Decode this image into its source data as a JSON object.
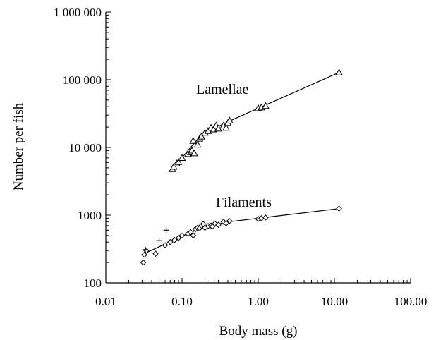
{
  "chart_data": {
    "type": "scatter",
    "xlabel": "Body mass (g)",
    "ylabel": "Number per fish",
    "xscale": "log",
    "yscale": "log",
    "xlim": [
      0.01,
      100
    ],
    "ylim": [
      100,
      1000000
    ],
    "x_ticks": [
      "0.01",
      "0.10",
      "1.00",
      "10.00",
      "100.00"
    ],
    "y_ticks": [
      "100",
      "1000",
      "10 000",
      "100 000",
      "1 000 000"
    ],
    "grid": false,
    "legend": "none",
    "annotations": [
      "Lamellae",
      "Filaments"
    ],
    "series": [
      {
        "marker": "triangle",
        "points": [
          [
            0.075,
            4800
          ],
          [
            0.078,
            5200
          ],
          [
            0.085,
            5800
          ],
          [
            0.09,
            6100
          ],
          [
            0.1,
            7000
          ],
          [
            0.12,
            8000
          ],
          [
            0.13,
            8500
          ],
          [
            0.135,
            9000
          ],
          [
            0.14,
            12500
          ],
          [
            0.145,
            8200
          ],
          [
            0.16,
            11000
          ],
          [
            0.17,
            13500
          ],
          [
            0.18,
            14500
          ],
          [
            0.2,
            16500
          ],
          [
            0.22,
            17500
          ],
          [
            0.24,
            19500
          ],
          [
            0.26,
            18500
          ],
          [
            0.28,
            21000
          ],
          [
            0.3,
            19000
          ],
          [
            0.35,
            21000
          ],
          [
            0.38,
            19500
          ],
          [
            0.4,
            23000
          ],
          [
            0.42,
            25000
          ],
          [
            1.0,
            38000
          ],
          [
            1.1,
            39000
          ],
          [
            1.25,
            41000
          ],
          [
            11.5,
            128000
          ]
        ],
        "fit": [
          [
            0.075,
            4800
          ],
          [
            0.18,
            15500
          ],
          [
            0.42,
            24500
          ],
          [
            11.5,
            128000
          ]
        ]
      },
      {
        "marker": "diamond",
        "points": [
          [
            0.031,
            200
          ],
          [
            0.032,
            260
          ],
          [
            0.034,
            300
          ],
          [
            0.045,
            270
          ],
          [
            0.06,
            360
          ],
          [
            0.07,
            400
          ],
          [
            0.08,
            430
          ],
          [
            0.09,
            460
          ],
          [
            0.1,
            500
          ],
          [
            0.12,
            530
          ],
          [
            0.13,
            560
          ],
          [
            0.14,
            500
          ],
          [
            0.15,
            620
          ],
          [
            0.16,
            650
          ],
          [
            0.17,
            640
          ],
          [
            0.18,
            700
          ],
          [
            0.19,
            740
          ],
          [
            0.2,
            650
          ],
          [
            0.22,
            690
          ],
          [
            0.24,
            700
          ],
          [
            0.25,
            680
          ],
          [
            0.27,
            750
          ],
          [
            0.3,
            720
          ],
          [
            0.35,
            800
          ],
          [
            0.38,
            760
          ],
          [
            0.42,
            820
          ],
          [
            1.0,
            880
          ],
          [
            1.1,
            900
          ],
          [
            1.25,
            920
          ],
          [
            11.5,
            1250
          ]
        ],
        "fit": [
          [
            0.032,
            270
          ],
          [
            0.1,
            490
          ],
          [
            0.2,
            680
          ],
          [
            0.42,
            800
          ],
          [
            11.5,
            1250
          ]
        ]
      },
      {
        "marker": "plus",
        "points": [
          [
            0.033,
            310
          ],
          [
            0.05,
            420
          ],
          [
            0.062,
            600
          ]
        ]
      }
    ]
  }
}
